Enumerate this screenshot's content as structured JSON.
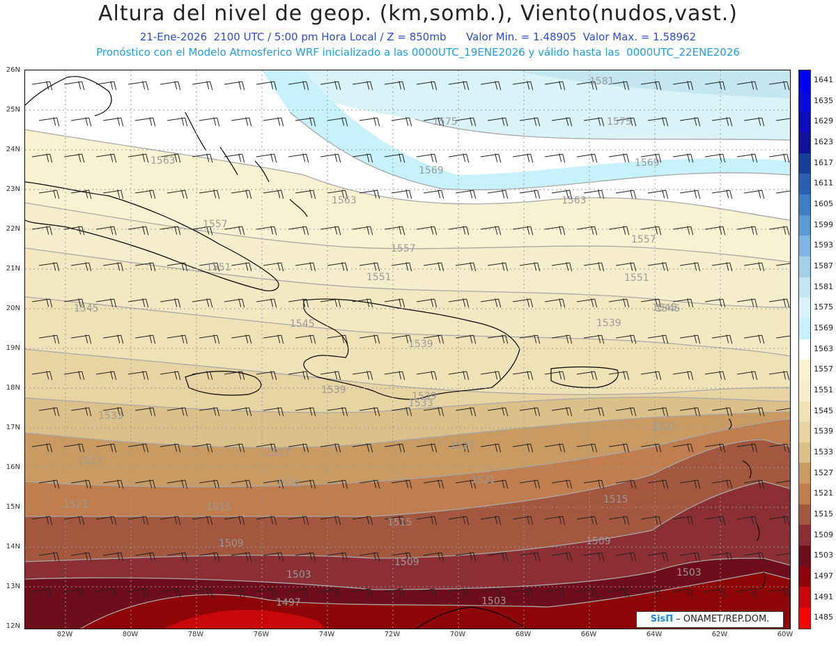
{
  "header": {
    "title": "Altura del nivel de geop. (km,somb.), Viento(nudos,vast.)",
    "subtitle1": "21-Ene-2026  2100 UTC / 5:00 pm Hora Local / Z = 850mb      Valor Min. = 1.48905  Valor Max. = 1.58962",
    "subtitle2": "Pronóstico con el Modelo Atmosferico WRF inicializado a las 0000UTC_19ENE2026 y válido hasta las  0000UTC_22ENE2026"
  },
  "map": {
    "lat_ticks": [
      "26N",
      "25N",
      "24N",
      "23N",
      "22N",
      "21N",
      "20N",
      "19N",
      "18N",
      "17N",
      "16N",
      "15N",
      "14N",
      "13N",
      "12N"
    ],
    "lon_ticks": [
      "82W",
      "80W",
      "78W",
      "76W",
      "74W",
      "72W",
      "70W",
      "68W",
      "66W",
      "64W",
      "62W",
      "60W"
    ],
    "contour_labels": [
      {
        "text": "1581"
      },
      {
        "text": "1575"
      },
      {
        "text": "1575"
      },
      {
        "text": "1569"
      },
      {
        "text": "1569"
      },
      {
        "text": "1563"
      },
      {
        "text": "1563"
      },
      {
        "text": "1563"
      },
      {
        "text": "1557"
      },
      {
        "text": "1557"
      },
      {
        "text": "1557"
      },
      {
        "text": "1551"
      },
      {
        "text": "1551"
      },
      {
        "text": "1551"
      },
      {
        "text": "1545"
      },
      {
        "text": "1545"
      },
      {
        "text": "1545"
      },
      {
        "text": "1545"
      },
      {
        "text": "1539"
      },
      {
        "text": "1539"
      },
      {
        "text": "1539"
      },
      {
        "text": "1539"
      },
      {
        "text": "1533"
      },
      {
        "text": "1533"
      },
      {
        "text": "1527"
      },
      {
        "text": "1527"
      },
      {
        "text": "1527"
      },
      {
        "text": "1521"
      },
      {
        "text": "1521"
      },
      {
        "text": "1521"
      },
      {
        "text": "1521"
      },
      {
        "text": "1515"
      },
      {
        "text": "1515"
      },
      {
        "text": "1515"
      },
      {
        "text": "1509"
      },
      {
        "text": "1509"
      },
      {
        "text": "1509"
      },
      {
        "text": "1503"
      },
      {
        "text": "1503"
      },
      {
        "text": "1503"
      },
      {
        "text": "1497"
      }
    ]
  },
  "colorbar": {
    "levels": [
      "1641",
      "1635",
      "1629",
      "1623",
      "1617",
      "1611",
      "1605",
      "1599",
      "1593",
      "1587",
      "1581",
      "1575",
      "1569",
      "1563",
      "1557",
      "1551",
      "1545",
      "1539",
      "1533",
      "1527",
      "1521",
      "1515",
      "1509",
      "1503",
      "1497",
      "1491",
      "1485"
    ],
    "colors": [
      "#0000ff",
      "#0a0ae0",
      "#0d0dbf",
      "#10109a",
      "#163e9c",
      "#2b5fb4",
      "#3f7ec6",
      "#5c9bd2",
      "#7db6de",
      "#a2d0e8",
      "#c4e6f1",
      "#d9f3f8",
      "#c8f2fb",
      "#ffffff",
      "#f8f2d2",
      "#f6edcc",
      "#efe2b7",
      "#e8d3a2",
      "#dcc08a",
      "#c99a62",
      "#c07e4e",
      "#a4573f",
      "#8c2f34",
      "#6e0d1c",
      "#8e0508",
      "#c8070b",
      "#ff0000"
    ]
  },
  "credit": {
    "brand": "SisΠ",
    "text": " – ONAMET/REP.DOM."
  }
}
